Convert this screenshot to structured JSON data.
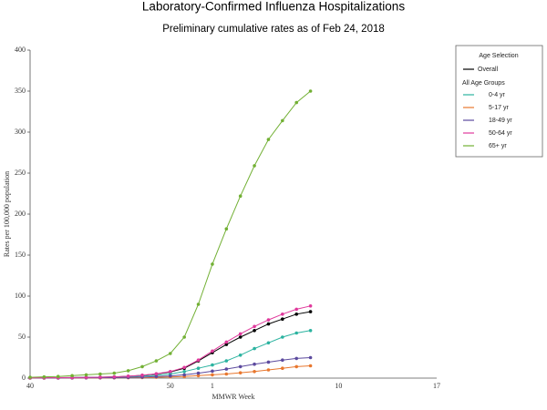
{
  "chart_data": {
    "type": "line",
    "title": "Laboratory-Confirmed Influenza Hospitalizations",
    "subtitle": "Preliminary cumulative rates as of Feb 24, 2018",
    "x_label": "MMWR Week",
    "y_label": "Rates per 100,000 population",
    "legend_title": "Age Selection",
    "legend_group_label": "All Age Groups",
    "legend_position": "right",
    "categories": [
      "40",
      null,
      null,
      null,
      null,
      null,
      null,
      null,
      null,
      null,
      "50",
      null,
      null,
      "1",
      null,
      null,
      null,
      null,
      null,
      null,
      null,
      null,
      "10",
      null,
      null,
      null,
      null,
      null,
      null,
      "17"
    ],
    "ylim": [
      0,
      400
    ],
    "yticks": [
      0,
      50,
      100,
      150,
      200,
      250,
      300,
      350,
      400
    ],
    "series": [
      {
        "name": "Overall",
        "color": "#000000",
        "values": [
          0.3,
          0.4,
          0.5,
          0.7,
          0.9,
          1.1,
          1.5,
          2.2,
          3.4,
          5,
          7.5,
          12,
          21,
          31,
          41,
          50,
          58,
          66,
          72,
          78,
          81,
          null,
          null,
          null,
          null,
          null,
          null,
          null,
          null,
          null
        ]
      },
      {
        "name": "0-4 yr",
        "color": "#2bb3a0",
        "values": [
          0.3,
          0.4,
          0.5,
          0.6,
          0.8,
          1,
          1.3,
          1.8,
          2.5,
          3.5,
          5,
          8,
          12,
          16,
          21,
          28,
          36,
          43,
          50,
          55,
          58,
          null,
          null,
          null,
          null,
          null,
          null,
          null,
          null,
          null
        ]
      },
      {
        "name": "5-17 yr",
        "color": "#e8772e",
        "values": [
          0.1,
          0.1,
          0.2,
          0.2,
          0.3,
          0.3,
          0.4,
          0.5,
          0.7,
          1,
          1.4,
          2,
          3,
          4,
          5,
          6.5,
          8,
          10,
          12,
          14,
          15,
          null,
          null,
          null,
          null,
          null,
          null,
          null,
          null,
          null
        ]
      },
      {
        "name": "18-49 yr",
        "color": "#5c4a9e",
        "values": [
          0.1,
          0.2,
          0.2,
          0.3,
          0.4,
          0.5,
          0.6,
          0.9,
          1.3,
          1.9,
          2.7,
          4,
          6,
          8.5,
          11,
          14,
          17,
          19.5,
          22,
          24,
          25,
          null,
          null,
          null,
          null,
          null,
          null,
          null,
          null,
          null
        ]
      },
      {
        "name": "50-64 yr",
        "color": "#e0399c",
        "values": [
          0.3,
          0.4,
          0.5,
          0.7,
          0.9,
          1.1,
          1.5,
          2.3,
          3.5,
          5.3,
          8,
          13,
          22,
          33,
          44,
          54,
          63,
          71,
          78,
          84,
          88,
          null,
          null,
          null,
          null,
          null,
          null,
          null,
          null,
          null
        ]
      },
      {
        "name": "65+ yr",
        "color": "#72b034",
        "values": [
          1,
          1.5,
          2,
          3,
          4,
          5,
          6,
          9,
          14,
          21,
          30,
          50,
          90,
          139,
          182,
          222,
          259,
          291,
          314,
          336,
          350,
          null,
          null,
          null,
          null,
          null,
          null,
          null,
          null,
          null
        ]
      }
    ]
  }
}
